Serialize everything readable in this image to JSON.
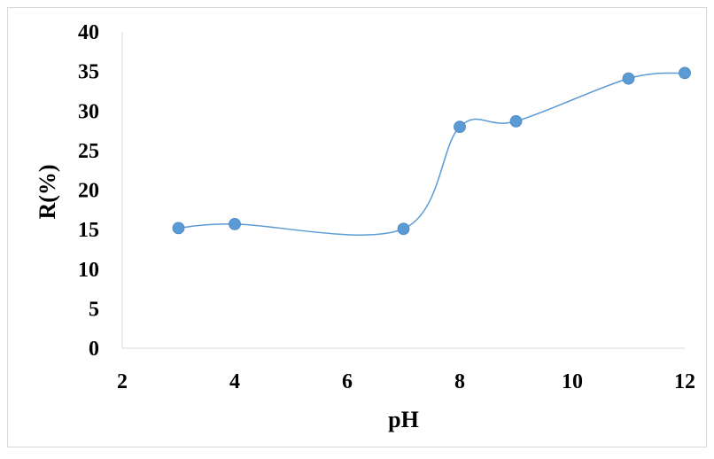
{
  "chart_data": {
    "type": "scatter",
    "smooth_line": true,
    "title": "",
    "xlabel": "pH",
    "ylabel": "R(%)",
    "xlim": [
      2,
      12
    ],
    "ylim": [
      0,
      40
    ],
    "x_ticks": [
      2,
      4,
      6,
      8,
      10,
      12
    ],
    "y_ticks": [
      0,
      5,
      10,
      15,
      20,
      25,
      30,
      35,
      40
    ],
    "grid": false,
    "legend": "none",
    "series": [
      {
        "color": "#5B9BD5",
        "x": [
          3,
          4,
          7,
          8,
          9,
          11,
          12
        ],
        "y": [
          15.2,
          15.7,
          15.1,
          28.0,
          28.7,
          34.1,
          34.8
        ]
      }
    ]
  }
}
